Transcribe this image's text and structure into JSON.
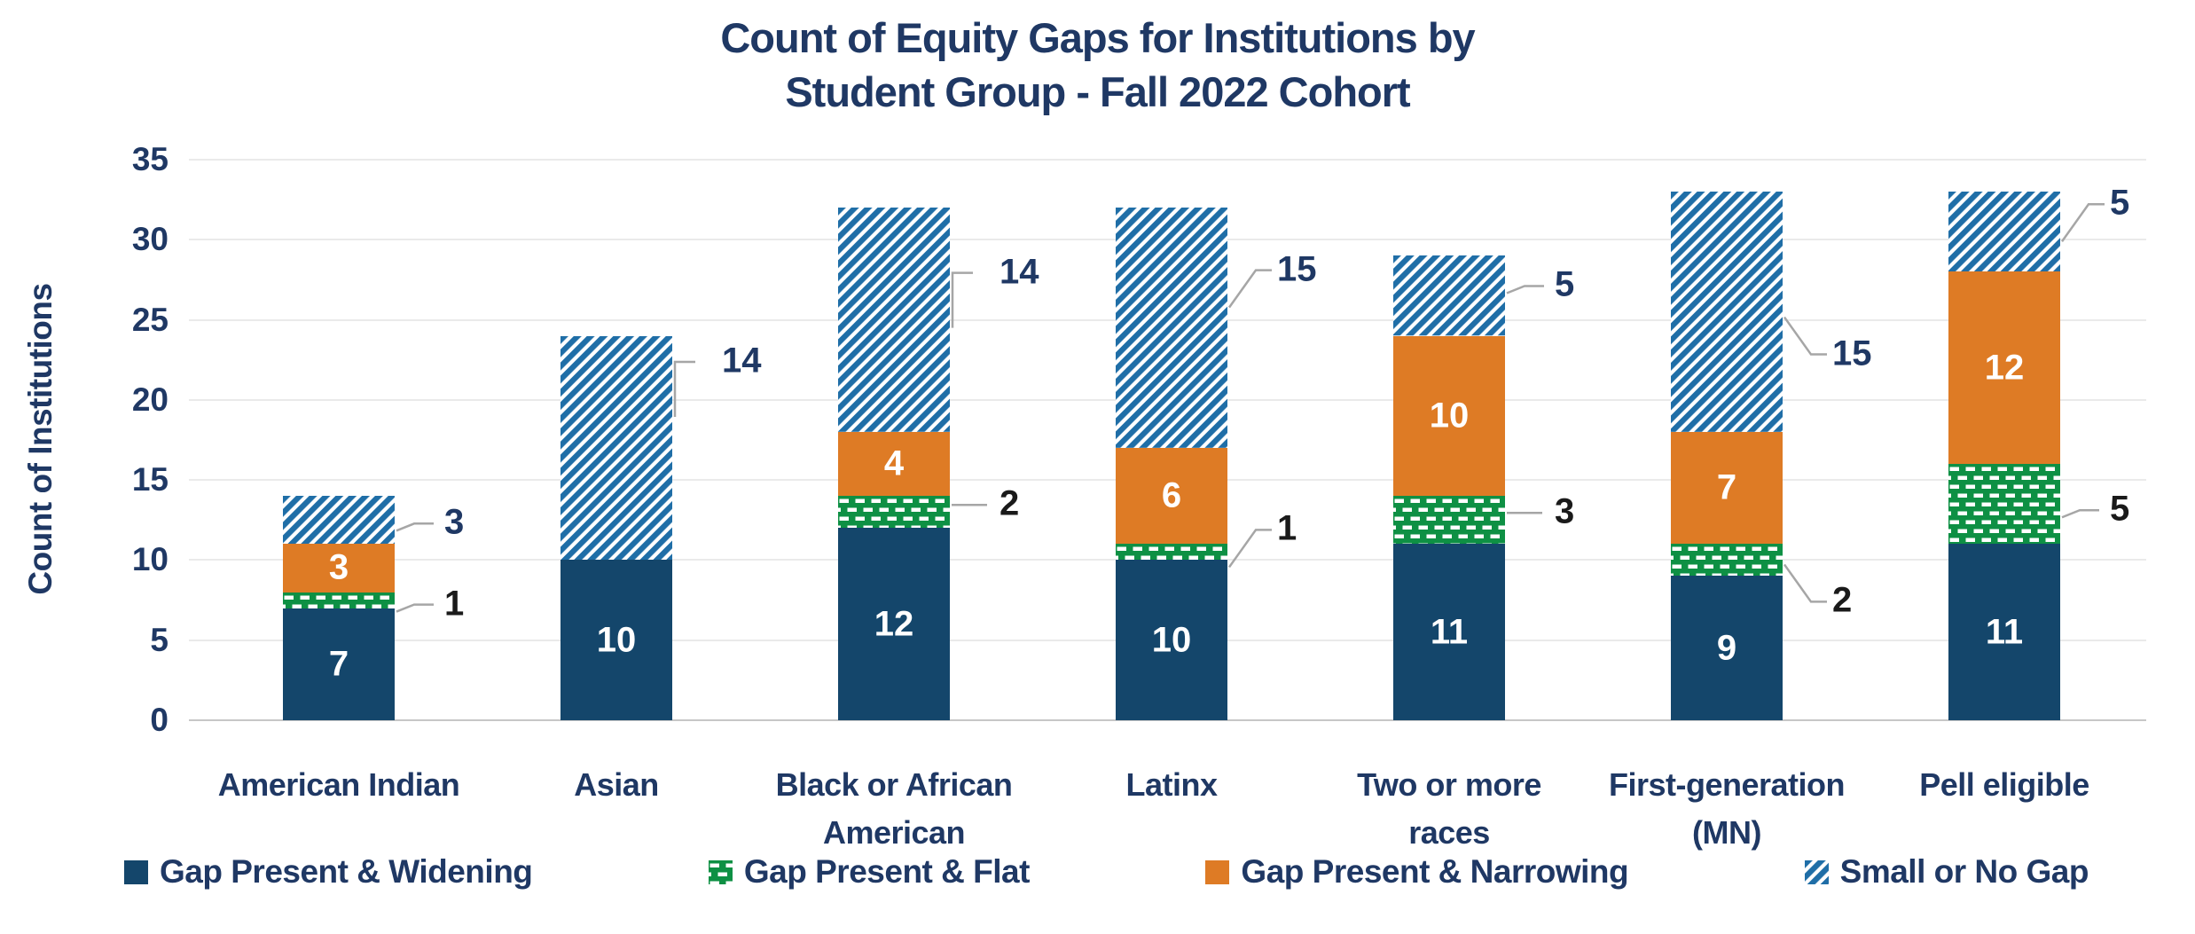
{
  "title": {
    "line1": "Count of Equity Gaps for Institutions by",
    "line2": "Student Group - Fall 2022 Cohort"
  },
  "y_axis": {
    "title": "Count of Institutions",
    "ticks": [
      "35",
      "30",
      "25",
      "20",
      "15",
      "10",
      "5",
      "0"
    ]
  },
  "x_axis": {
    "category_lines": [
      [
        "American Indian"
      ],
      [
        "Asian"
      ],
      [
        "Black or African",
        "American"
      ],
      [
        "Latinx"
      ],
      [
        "Two or more",
        "races"
      ],
      [
        "First-generation",
        "(MN)"
      ],
      [
        "Pell eligible"
      ]
    ]
  },
  "legend": [
    {
      "label": "Gap Present & Widening",
      "swatch": "solid",
      "color": "#14466B"
    },
    {
      "label": "Gap Present & Flat",
      "swatch": "brick",
      "color": "#0E9044"
    },
    {
      "label": "Gap Present & Narrowing",
      "swatch": "solid",
      "color": "#DE7B25"
    },
    {
      "label": "Small or No Gap",
      "swatch": "hatch",
      "color": "#1F6EA7"
    }
  ],
  "colors": {
    "title_text": "#1F3864",
    "axis_text": "#1F3864",
    "bar_navy": "#14466B",
    "flat_green": "#0E9044",
    "narrowing_orange": "#DE7B25",
    "hatch_blue": "#1F6EA7",
    "pattern_white": "#FFFFFF",
    "inside_label": "#FFFFFF",
    "callout_flat_text": "#1A1A1A",
    "callout_gap_text": "#1F3864",
    "gridline": "#EAEAEA",
    "axis_line": "#C7C7C7",
    "leader_line": "#A6A6A6"
  },
  "chart_data": {
    "type": "bar",
    "stacked": true,
    "title": "Count of Equity Gaps for Institutions by Student Group - Fall 2022 Cohort",
    "categories": [
      "American Indian",
      "Asian",
      "Black or African American",
      "Latinx",
      "Two or more races",
      "First-generation (MN)",
      "Pell eligible"
    ],
    "series": [
      {
        "name": "Gap Present & Widening",
        "color": "#14466B",
        "pattern": "solid",
        "label_style": "inside",
        "values": [
          7,
          10,
          12,
          10,
          11,
          9,
          11
        ]
      },
      {
        "name": "Gap Present & Flat",
        "color": "#0E9044",
        "pattern": "brick",
        "label_style": "callout",
        "callout_text_color": "#1A1A1A",
        "values": [
          1,
          0,
          2,
          1,
          3,
          2,
          5
        ]
      },
      {
        "name": "Gap Present & Narrowing",
        "color": "#DE7B25",
        "pattern": "solid",
        "label_style": "inside",
        "values": [
          3,
          0,
          4,
          6,
          10,
          7,
          12
        ]
      },
      {
        "name": "Small or No Gap",
        "color": "#1F6EA7",
        "pattern": "hatch",
        "label_style": "callout",
        "callout_text_color": "#1F3864",
        "values": [
          3,
          14,
          14,
          15,
          5,
          15,
          5
        ]
      }
    ],
    "totals": [
      14,
      24,
      32,
      32,
      29,
      33,
      33
    ],
    "xlabel": "",
    "ylabel": "Count of Institutions",
    "ylim": [
      0,
      35
    ],
    "ytick_step": 5,
    "grid": true,
    "legend_position": "bottom"
  }
}
